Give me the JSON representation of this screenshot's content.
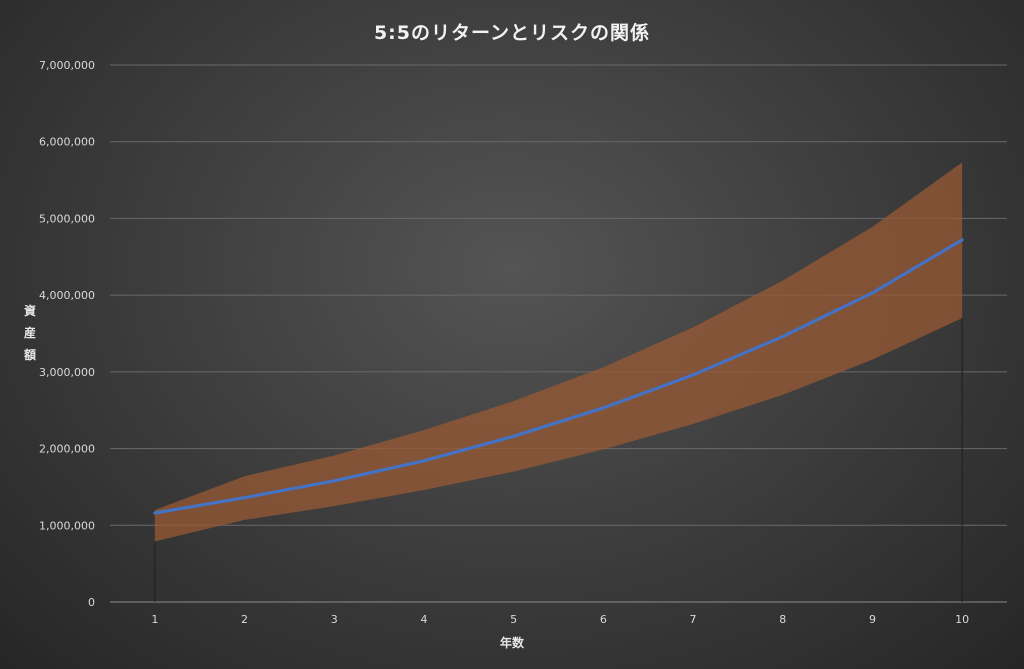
{
  "chart_data": {
    "type": "line",
    "title": "5:5のリターンとリスクの関係",
    "xlabel": "年数",
    "ylabel": "資産額",
    "x": [
      1,
      2,
      3,
      4,
      5,
      6,
      7,
      8,
      9,
      10
    ],
    "y_ticks": [
      "0",
      "1,000,000",
      "2,000,000",
      "3,000,000",
      "4,000,000",
      "5,000,000",
      "6,000,000",
      "7,000,000"
    ],
    "ylim": [
      0,
      7000000
    ],
    "grid": true,
    "legend": "none",
    "series": [
      {
        "values": [
          1160000,
          1360000,
          1580000,
          1840000,
          2160000,
          2530000,
          2960000,
          3460000,
          4030000,
          4720000
        ],
        "color": "#4472c4"
      }
    ],
    "band": {
      "upper": [
        1200000,
        1640000,
        1910000,
        2240000,
        2620000,
        3060000,
        3580000,
        4190000,
        4890000,
        5730000
      ],
      "lower": [
        790000,
        1070000,
        1250000,
        1460000,
        1700000,
        1990000,
        2320000,
        2700000,
        3160000,
        3700000
      ],
      "color": "#9a5a34"
    }
  }
}
